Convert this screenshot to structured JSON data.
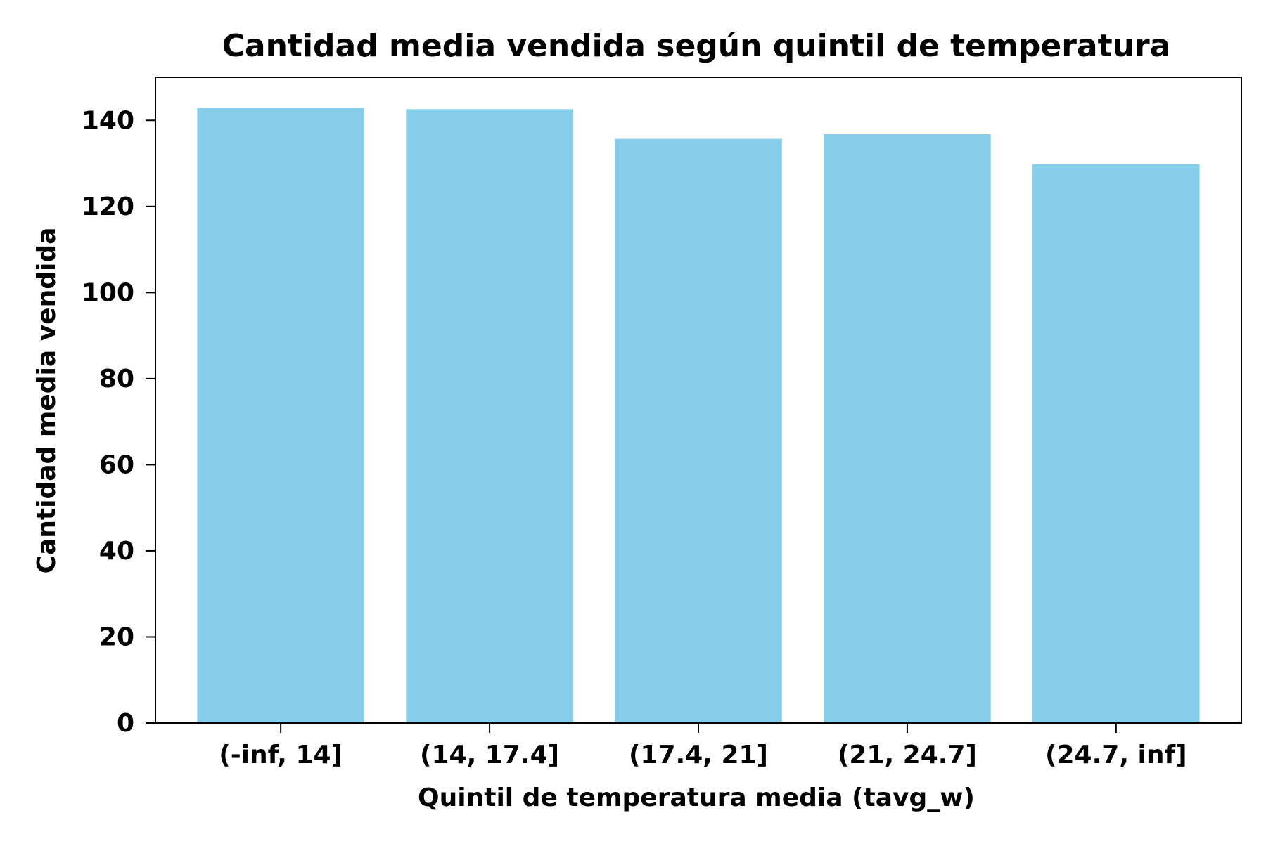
{
  "chart_data": {
    "type": "bar",
    "title": "Cantidad media vendida según quintil de temperatura",
    "xlabel": "Quintil de temperatura media (tavg_w)",
    "ylabel": "Cantidad media vendida",
    "categories": [
      "(-inf, 14]",
      "(14, 17.4]",
      "(17.4, 21]",
      "(21, 24.7]",
      "(24.7, inf]"
    ],
    "values": [
      142.9,
      142.6,
      135.7,
      136.8,
      129.8
    ],
    "ylim": [
      0,
      150
    ],
    "yticks": [
      0,
      20,
      40,
      60,
      80,
      100,
      120,
      140
    ],
    "ytick_labels": [
      "0",
      "20",
      "40",
      "60",
      "80",
      "100",
      "120",
      "140"
    ],
    "grid": false,
    "legend": "none",
    "bar_color": "#87CEEB",
    "axis_color": "#000000"
  }
}
